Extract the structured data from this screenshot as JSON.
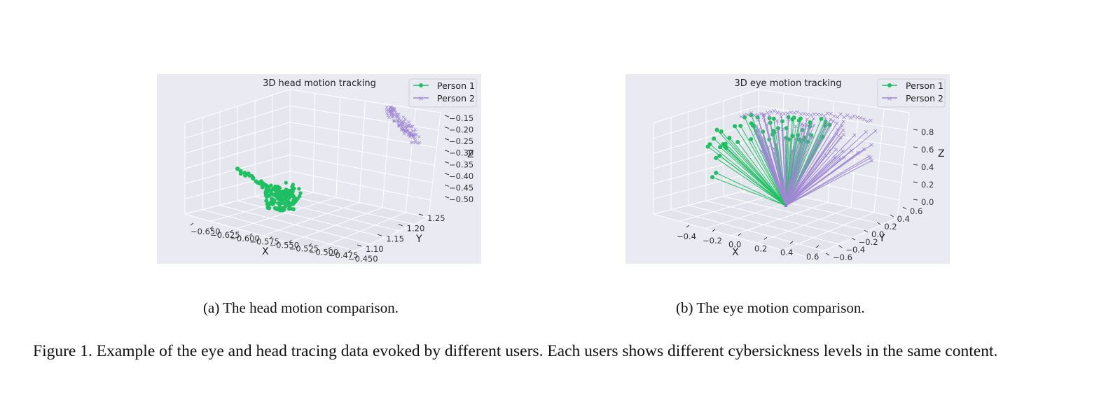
{
  "colors": {
    "background": "#eaeaf2",
    "grid": "#ffffff",
    "person1": "#1fbf63",
    "person2": "#9d87d1"
  },
  "chart_data": [
    {
      "type": "scatter",
      "projection": "3d",
      "title": "3D head motion tracking",
      "xlabel": "X",
      "ylabel": "Y",
      "zlabel": "Z",
      "xticks": [
        "−0.650",
        "−0.625",
        "−0.600",
        "−0.575",
        "−0.550",
        "−0.525",
        "−0.500",
        "−0.475",
        "−0.450"
      ],
      "yticks": [
        "1.10",
        "1.15",
        "1.20",
        "1.25"
      ],
      "zticks": [
        "−0.15",
        "−0.20",
        "−0.25",
        "−0.30",
        "−0.35",
        "−0.40",
        "−0.45",
        "−0.50"
      ],
      "grid": true,
      "legend": "top-right",
      "series": [
        {
          "name": "Person 1",
          "marker": "circle",
          "region": {
            "x": [
              -0.61,
              -0.54
            ],
            "y": [
              1.12,
              1.18
            ],
            "z": [
              -0.5,
              -0.36
            ]
          }
        },
        {
          "name": "Person 2",
          "marker": "x",
          "region": {
            "x": [
              -0.47,
              -0.45
            ],
            "y": [
              1.22,
              1.26
            ],
            "z": [
              -0.25,
              -0.15
            ]
          }
        }
      ]
    },
    {
      "type": "line",
      "projection": "3d",
      "title": "3D eye motion tracking",
      "xlabel": "X",
      "ylabel": "Y",
      "zlabel": "Z",
      "xticks": [
        "−0.4",
        "−0.2",
        "0.0",
        "0.2",
        "0.4",
        "0.6"
      ],
      "yticks": [
        "−0.6",
        "−0.4",
        "−0.2",
        "0.0",
        "0.2",
        "0.4",
        "0.6"
      ],
      "zticks": [
        "0.0",
        "0.2",
        "0.4",
        "0.6",
        "0.8"
      ],
      "grid": true,
      "legend": "top-right",
      "origin": [
        0.0,
        0.0,
        0.0
      ],
      "series": [
        {
          "name": "Person 1",
          "marker": "circle",
          "region": {
            "x": [
              -0.45,
              0.3
            ],
            "y": [
              -0.2,
              0.6
            ],
            "z": [
              0.5,
              0.85
            ]
          }
        },
        {
          "name": "Person 2",
          "marker": "x",
          "region": {
            "x": [
              -0.1,
              0.65
            ],
            "y": [
              -0.4,
              0.5
            ],
            "z": [
              0.6,
              0.9
            ]
          }
        }
      ]
    }
  ],
  "captions": {
    "a": "(a) The head motion comparison.",
    "b": "(b) The eye motion comparison.",
    "figure": "Figure 1. Example of the eye and head tracing data evoked by different users. Each users shows different cybersickness levels in the same content."
  }
}
